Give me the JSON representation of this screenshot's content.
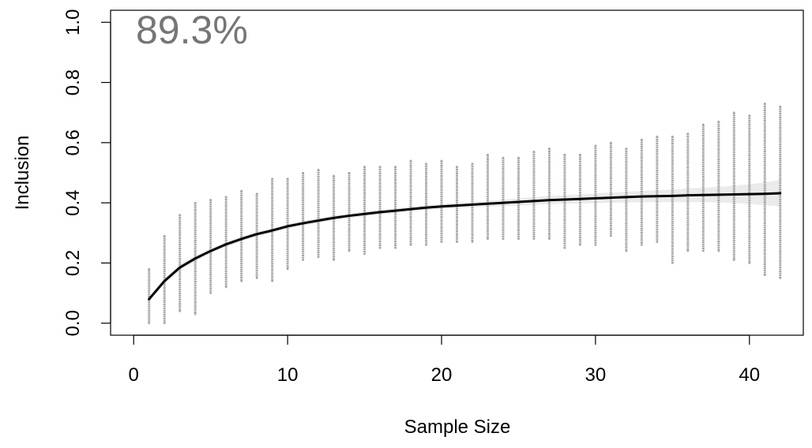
{
  "chart_data": {
    "type": "scatter",
    "title": "",
    "annotation": "89.3%",
    "annotation_color": "#767676",
    "xlabel": "Sample Size",
    "ylabel": "Inclusion",
    "xlim": [
      -1.5,
      43.5
    ],
    "ylim": [
      -0.04,
      1.04
    ],
    "x_ticks": [
      0,
      10,
      20,
      30,
      40
    ],
    "x_tick_labels": [
      "0",
      "10",
      "20",
      "30",
      "40"
    ],
    "y_ticks": [
      0.0,
      0.2,
      0.4,
      0.6,
      0.8,
      1.0
    ],
    "y_tick_labels": [
      "0.0",
      "0.2",
      "0.4",
      "0.6",
      "0.8",
      "1.0"
    ],
    "grid": false,
    "colors": {
      "points": "#a6a6a6",
      "band": "#ebebeb",
      "mean_line": "#000000"
    },
    "series": [
      {
        "type": "point-range",
        "x": [
          1,
          2,
          3,
          4,
          5,
          6,
          7,
          8,
          9,
          10,
          11,
          12,
          13,
          14,
          15,
          16,
          17,
          18,
          19,
          20,
          21,
          22,
          23,
          24,
          25,
          26,
          27,
          28,
          29,
          30,
          31,
          32,
          33,
          34,
          35,
          36,
          37,
          38,
          39,
          40,
          41,
          42
        ],
        "y_min": [
          0.0,
          0.0,
          0.04,
          0.03,
          0.1,
          0.12,
          0.14,
          0.15,
          0.14,
          0.18,
          0.21,
          0.22,
          0.21,
          0.24,
          0.23,
          0.25,
          0.25,
          0.26,
          0.26,
          0.27,
          0.27,
          0.27,
          0.28,
          0.28,
          0.28,
          0.28,
          0.28,
          0.25,
          0.26,
          0.26,
          0.29,
          0.24,
          0.26,
          0.27,
          0.2,
          0.24,
          0.24,
          0.24,
          0.21,
          0.2,
          0.16,
          0.15
        ],
        "y_max": [
          0.18,
          0.29,
          0.36,
          0.4,
          0.41,
          0.42,
          0.44,
          0.43,
          0.48,
          0.48,
          0.5,
          0.51,
          0.49,
          0.5,
          0.52,
          0.52,
          0.52,
          0.54,
          0.53,
          0.54,
          0.52,
          0.53,
          0.56,
          0.55,
          0.55,
          0.57,
          0.58,
          0.56,
          0.56,
          0.59,
          0.6,
          0.58,
          0.61,
          0.62,
          0.62,
          0.63,
          0.66,
          0.67,
          0.7,
          0.69,
          0.73,
          0.72
        ]
      },
      {
        "type": "line",
        "x": [
          1,
          2,
          3,
          4,
          5,
          6,
          7,
          8,
          9,
          10,
          11,
          12,
          13,
          14,
          15,
          16,
          17,
          18,
          19,
          20,
          21,
          22,
          23,
          24,
          25,
          26,
          27,
          28,
          29,
          30,
          31,
          32,
          33,
          34,
          35,
          36,
          37,
          38,
          39,
          40,
          41,
          42
        ],
        "y": [
          0.08,
          0.14,
          0.185,
          0.215,
          0.24,
          0.262,
          0.28,
          0.296,
          0.308,
          0.322,
          0.332,
          0.341,
          0.35,
          0.357,
          0.363,
          0.369,
          0.374,
          0.379,
          0.384,
          0.388,
          0.391,
          0.394,
          0.397,
          0.4,
          0.403,
          0.406,
          0.409,
          0.411,
          0.413,
          0.415,
          0.417,
          0.419,
          0.421,
          0.422,
          0.423,
          0.425,
          0.426,
          0.427,
          0.428,
          0.429,
          0.43,
          0.432
        ],
        "band_lower": [
          0.075,
          0.13,
          0.175,
          0.205,
          0.232,
          0.254,
          0.272,
          0.288,
          0.3,
          0.314,
          0.324,
          0.333,
          0.342,
          0.349,
          0.355,
          0.361,
          0.366,
          0.371,
          0.376,
          0.38,
          0.382,
          0.385,
          0.387,
          0.389,
          0.391,
          0.393,
          0.395,
          0.397,
          0.398,
          0.399,
          0.4,
          0.401,
          0.402,
          0.402,
          0.402,
          0.402,
          0.402,
          0.401,
          0.399,
          0.396,
          0.392,
          0.388
        ],
        "band_upper": [
          0.085,
          0.15,
          0.195,
          0.225,
          0.248,
          0.27,
          0.288,
          0.304,
          0.316,
          0.33,
          0.34,
          0.349,
          0.358,
          0.365,
          0.371,
          0.377,
          0.382,
          0.387,
          0.392,
          0.396,
          0.4,
          0.403,
          0.407,
          0.411,
          0.415,
          0.419,
          0.423,
          0.425,
          0.428,
          0.431,
          0.434,
          0.437,
          0.44,
          0.442,
          0.444,
          0.448,
          0.45,
          0.453,
          0.457,
          0.462,
          0.468,
          0.476
        ]
      }
    ]
  }
}
